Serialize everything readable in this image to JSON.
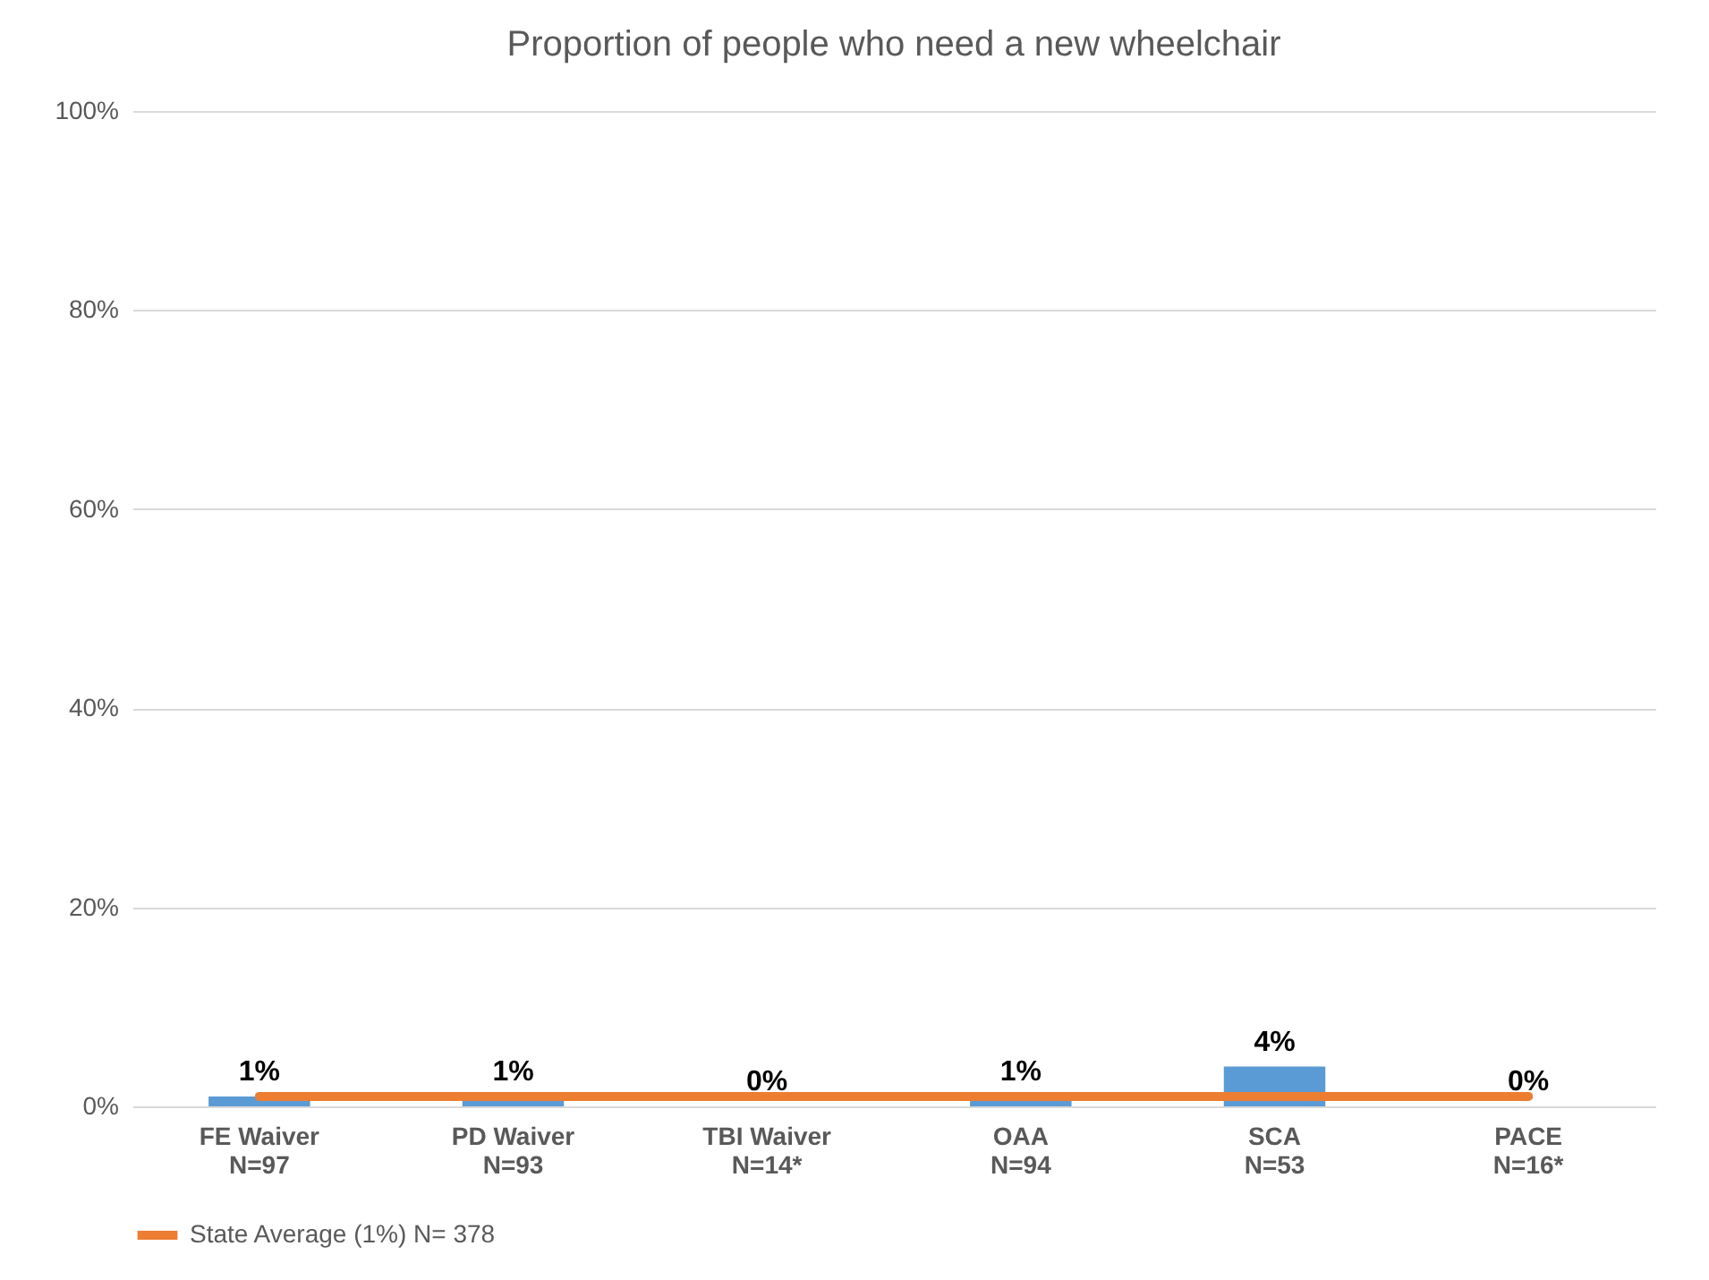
{
  "chart_data": {
    "type": "bar",
    "title": "Proportion of people who need a new wheelchair",
    "categories": [
      "FE Waiver\nN=97",
      "PD Waiver\nN=93",
      "TBI Waiver\nN=14*",
      "OAA\nN=94",
      "SCA\nN=53",
      "PACE\nN=16*"
    ],
    "series": [
      {
        "type": "bar",
        "color": "#5b9bd5",
        "values": [
          1,
          1,
          0,
          1,
          4,
          0
        ],
        "value_labels": [
          "1%",
          "1%",
          "0%",
          "1%",
          "4%",
          "0%"
        ]
      },
      {
        "type": "line",
        "name": "State Average (1%) N= 378",
        "color": "#ed7d31",
        "values": [
          1,
          1,
          1,
          1,
          1,
          1
        ]
      }
    ],
    "ylim": [
      0,
      100
    ],
    "yticks": [
      {
        "value": 0,
        "label": "0%"
      },
      {
        "value": 20,
        "label": "20%"
      },
      {
        "value": 40,
        "label": "40%"
      },
      {
        "value": 60,
        "label": "60%"
      },
      {
        "value": 80,
        "label": "80%"
      },
      {
        "value": 100,
        "label": "100%"
      }
    ],
    "grid": "y",
    "legend": "bottom"
  }
}
